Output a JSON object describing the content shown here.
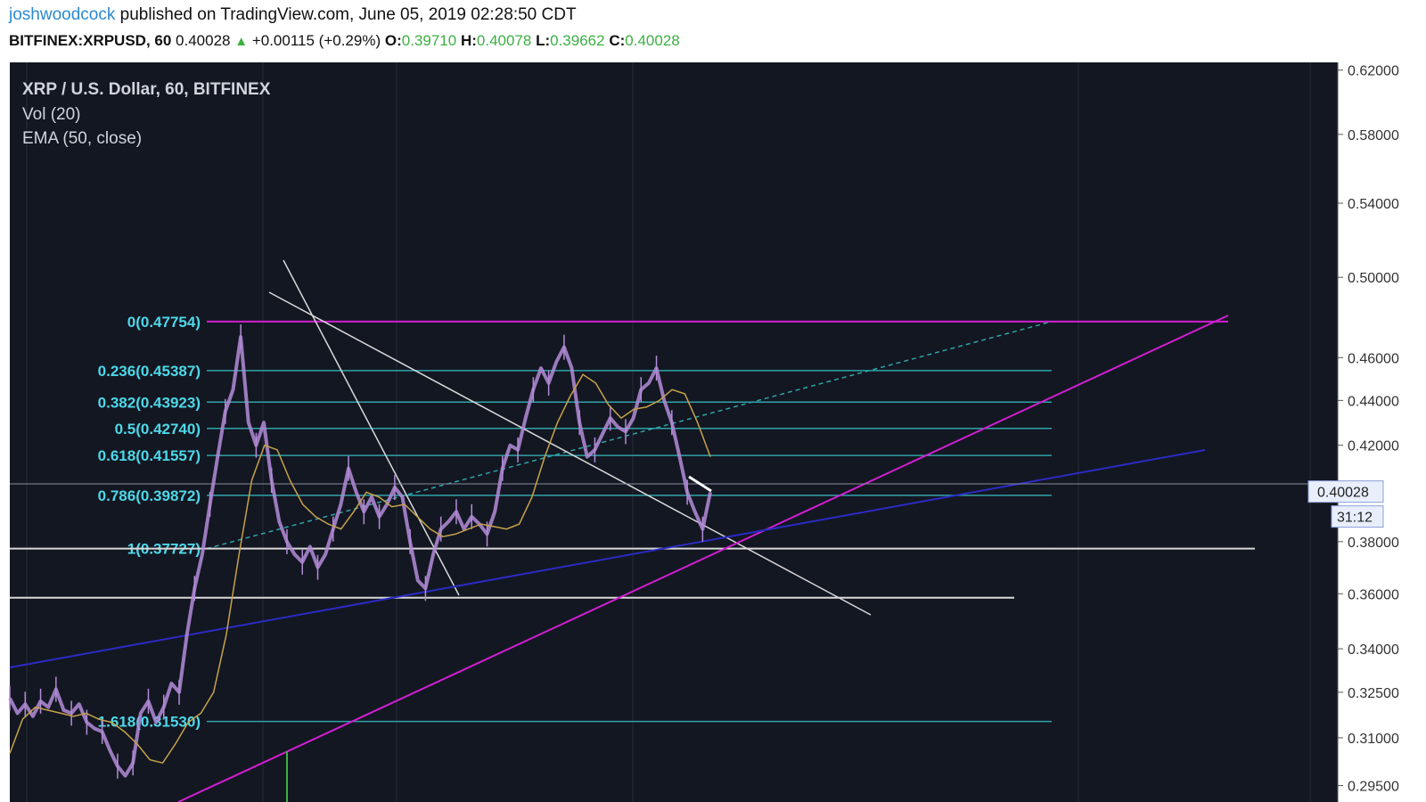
{
  "header": {
    "author": "joshwoodcock",
    "published_text": "published on TradingView.com, June 05, 2019 02:28:50 CDT",
    "symbol": "BITFINEX:XRPUSD, 60",
    "last": "0.40028",
    "change": "+0.00115 (+0.29%)",
    "o_label": "O:",
    "o_value": "0.39710",
    "h_label": "H:",
    "h_value": "0.40078",
    "l_label": "L:",
    "l_value": "0.39662",
    "c_label": "C:",
    "c_value": "0.40028"
  },
  "legend": {
    "title": "XRP / U.S. Dollar, 60, BITFINEX",
    "vol": "Vol (20)",
    "ema": "EMA (50, close)"
  },
  "price_badge": {
    "value": "0.40028",
    "countdown": "31:12"
  },
  "colors": {
    "background": "#131722",
    "candles": "#b48cd8",
    "ema": "#c7a24a",
    "fib": "#2fa3a8",
    "fib_label": "#4dd8e8",
    "magenta": "#d21ed2",
    "blue": "#2b2bc4",
    "white_line": "#d9d9d9"
  },
  "chart_data": {
    "type": "line",
    "title": "XRP / U.S. Dollar, 60, BITFINEX",
    "y_scale": "log",
    "ylim": [
      0.29,
      0.625
    ],
    "y_ticks": [
      "0.62000",
      "0.58000",
      "0.54000",
      "0.50000",
      "0.46000",
      "0.44000",
      "0.42000",
      "0.38000",
      "0.36000",
      "0.34000",
      "0.32500",
      "0.31000",
      "0.29500"
    ],
    "last_price": 0.40028,
    "fib_levels": [
      {
        "label": "0(0.47754)",
        "value": 0.47754
      },
      {
        "label": "0.236(0.45387)",
        "value": 0.45387
      },
      {
        "label": "0.382(0.43923)",
        "value": 0.43923
      },
      {
        "label": "0.5(0.42740)",
        "value": 0.4274
      },
      {
        "label": "0.618(0.41557)",
        "value": 0.41557
      },
      {
        "label": "0.786(0.39872)",
        "value": 0.39872
      },
      {
        "label": "1(0.37727)",
        "value": 0.37727
      },
      {
        "label": "1.618(0.31530)",
        "value": 0.3153
      }
    ],
    "price_path": [
      0.323,
      0.318,
      0.321,
      0.317,
      0.322,
      0.32,
      0.326,
      0.319,
      0.318,
      0.321,
      0.315,
      0.313,
      0.312,
      0.306,
      0.301,
      0.298,
      0.302,
      0.318,
      0.322,
      0.315,
      0.32,
      0.328,
      0.325,
      0.345,
      0.362,
      0.375,
      0.395,
      0.415,
      0.435,
      0.445,
      0.47,
      0.43,
      0.42,
      0.43,
      0.405,
      0.388,
      0.38,
      0.375,
      0.372,
      0.378,
      0.37,
      0.375,
      0.385,
      0.395,
      0.41,
      0.4,
      0.392,
      0.398,
      0.39,
      0.395,
      0.402,
      0.398,
      0.38,
      0.365,
      0.362,
      0.375,
      0.385,
      0.388,
      0.392,
      0.385,
      0.39,
      0.387,
      0.383,
      0.392,
      0.41,
      0.42,
      0.418,
      0.432,
      0.445,
      0.455,
      0.448,
      0.458,
      0.465,
      0.455,
      0.43,
      0.415,
      0.418,
      0.425,
      0.432,
      0.428,
      0.426,
      0.432,
      0.445,
      0.448,
      0.455,
      0.44,
      0.43,
      0.415,
      0.4,
      0.392,
      0.385,
      0.4
    ],
    "ema_path": [
      0.305,
      0.316,
      0.32,
      0.319,
      0.318,
      0.317,
      0.318,
      0.316,
      0.315,
      0.312,
      0.308,
      0.303,
      0.302,
      0.308,
      0.315,
      0.318,
      0.325,
      0.345,
      0.375,
      0.405,
      0.42,
      0.418,
      0.405,
      0.395,
      0.39,
      0.387,
      0.385,
      0.392,
      0.4,
      0.398,
      0.394,
      0.395,
      0.39,
      0.385,
      0.382,
      0.383,
      0.385,
      0.387,
      0.386,
      0.385,
      0.387,
      0.398,
      0.415,
      0.43,
      0.442,
      0.452,
      0.448,
      0.438,
      0.432,
      0.436,
      0.437,
      0.44,
      0.445,
      0.443,
      0.43,
      0.415
    ]
  }
}
